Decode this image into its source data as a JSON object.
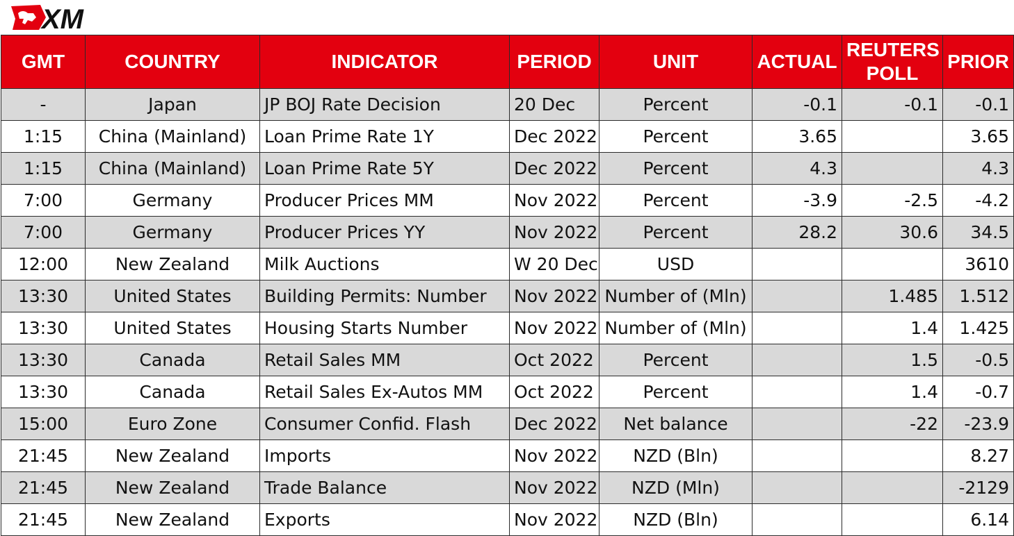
{
  "brand": {
    "logo_text": "XM",
    "logo_color": "#e3000f",
    "logo_text_color": "#111111"
  },
  "colors": {
    "header_bg": "#e3000f",
    "header_text": "#ffffff",
    "row_shade": "#d9d9d9",
    "row_plain": "#ffffff",
    "grid": "#2b2b2b"
  },
  "table": {
    "headers": [
      "GMT",
      "COUNTRY",
      "INDICATOR",
      "PERIOD",
      "UNIT",
      "ACTUAL",
      "REUTERS POLL",
      "PRIOR"
    ],
    "rows": [
      [
        "-",
        "Japan",
        "JP BOJ Rate Decision",
        "20 Dec",
        "Percent",
        "-0.1",
        "-0.1",
        "-0.1"
      ],
      [
        "1:15",
        "China (Mainland)",
        "Loan Prime Rate 1Y",
        "Dec 2022",
        "Percent",
        "3.65",
        "",
        "3.65"
      ],
      [
        "1:15",
        "China (Mainland)",
        "Loan Prime Rate 5Y",
        "Dec 2022",
        "Percent",
        "4.3",
        "",
        "4.3"
      ],
      [
        "7:00",
        "Germany",
        "Producer Prices MM",
        "Nov 2022",
        "Percent",
        "-3.9",
        "-2.5",
        "-4.2"
      ],
      [
        "7:00",
        "Germany",
        "Producer Prices YY",
        "Nov 2022",
        "Percent",
        "28.2",
        "30.6",
        "34.5"
      ],
      [
        "12:00",
        "New Zealand",
        "Milk Auctions",
        "W 20 Dec",
        "USD",
        "",
        "",
        "3610"
      ],
      [
        "13:30",
        "United States",
        "Building Permits: Number",
        "Nov 2022",
        "Number of (Mln)",
        "",
        "1.485",
        "1.512"
      ],
      [
        "13:30",
        "United States",
        "Housing Starts Number",
        "Nov 2022",
        "Number of (Mln)",
        "",
        "1.4",
        "1.425"
      ],
      [
        "13:30",
        "Canada",
        "Retail Sales MM",
        "Oct 2022",
        "Percent",
        "",
        "1.5",
        "-0.5"
      ],
      [
        "13:30",
        "Canada",
        "Retail Sales Ex-Autos MM",
        "Oct 2022",
        "Percent",
        "",
        "1.4",
        "-0.7"
      ],
      [
        "15:00",
        "Euro Zone",
        "Consumer Confid. Flash",
        "Dec 2022",
        "Net balance",
        "",
        "-22",
        "-23.9"
      ],
      [
        "21:45",
        "New Zealand",
        "Imports",
        "Nov 2022",
        "NZD (Bln)",
        "",
        "",
        "8.27"
      ],
      [
        "21:45",
        "New Zealand",
        "Trade Balance",
        "Nov 2022",
        "NZD (Mln)",
        "",
        "",
        "-2129"
      ],
      [
        "21:45",
        "New Zealand",
        "Exports",
        "Nov 2022",
        "NZD (Bln)",
        "",
        "",
        "6.14"
      ]
    ]
  }
}
